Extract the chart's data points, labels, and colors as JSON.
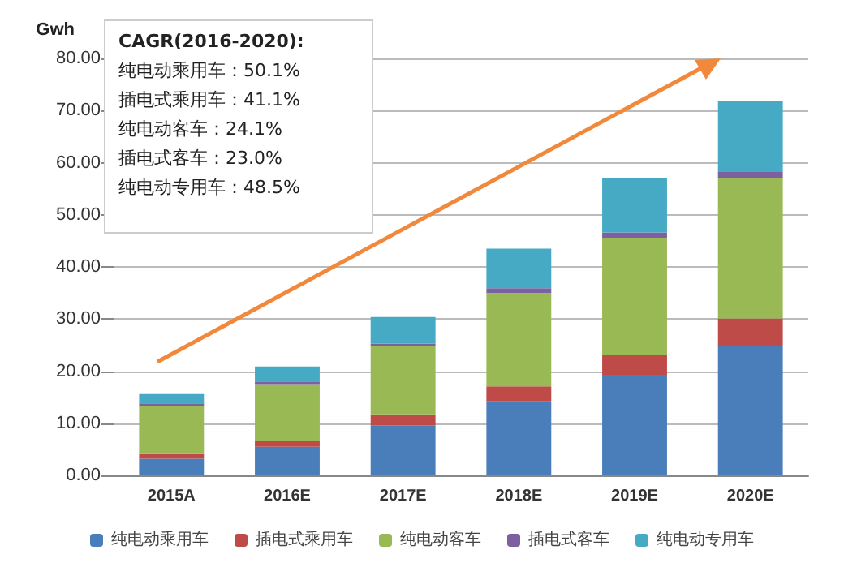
{
  "chart_data": {
    "type": "bar",
    "stacked": true,
    "ylabel": "Gwh",
    "categories": [
      "2015A",
      "2016E",
      "2017E",
      "2018E",
      "2019E",
      "2020E"
    ],
    "series": [
      {
        "name": "纯电动乘用车",
        "color": "#4a7ebb",
        "values": [
          3.2,
          5.5,
          9.6,
          14.2,
          19.3,
          24.9
        ]
      },
      {
        "name": "插电式乘用车",
        "color": "#be4b48",
        "values": [
          0.9,
          1.2,
          2.1,
          2.9,
          3.9,
          5.2
        ]
      },
      {
        "name": "纯电动客车",
        "color": "#98b954",
        "values": [
          9.2,
          10.8,
          13.1,
          17.9,
          22.4,
          26.9
        ]
      },
      {
        "name": "插电式客车",
        "color": "#7d60a0",
        "values": [
          0.5,
          0.5,
          0.5,
          0.9,
          1.0,
          1.2
        ]
      },
      {
        "name": "纯电动专用车",
        "color": "#46aac5",
        "values": [
          1.8,
          2.9,
          5.1,
          7.6,
          10.4,
          13.6
        ]
      }
    ],
    "ylim": [
      0,
      80
    ],
    "yticks": [
      {
        "value": 0,
        "label": "0.00"
      },
      {
        "value": 10,
        "label": "10.00"
      },
      {
        "value": 20,
        "label": "20.00"
      },
      {
        "value": 30,
        "label": "30.00"
      },
      {
        "value": 40,
        "label": "40.00"
      },
      {
        "value": 50,
        "label": "50.00"
      },
      {
        "value": 60,
        "label": "60.00"
      },
      {
        "value": 70,
        "label": "70.00"
      },
      {
        "value": 80,
        "label": "80.00"
      }
    ],
    "grid": "y",
    "legend": "bottom",
    "annotations": [
      "CAGR(2016-2020):",
      "纯电动乘用车：50.1%",
      "插电式乘用车：41.1%",
      "纯电动客车：24.1%",
      "插电式客车：23.0%",
      "纯电动专用车：48.5%"
    ]
  }
}
